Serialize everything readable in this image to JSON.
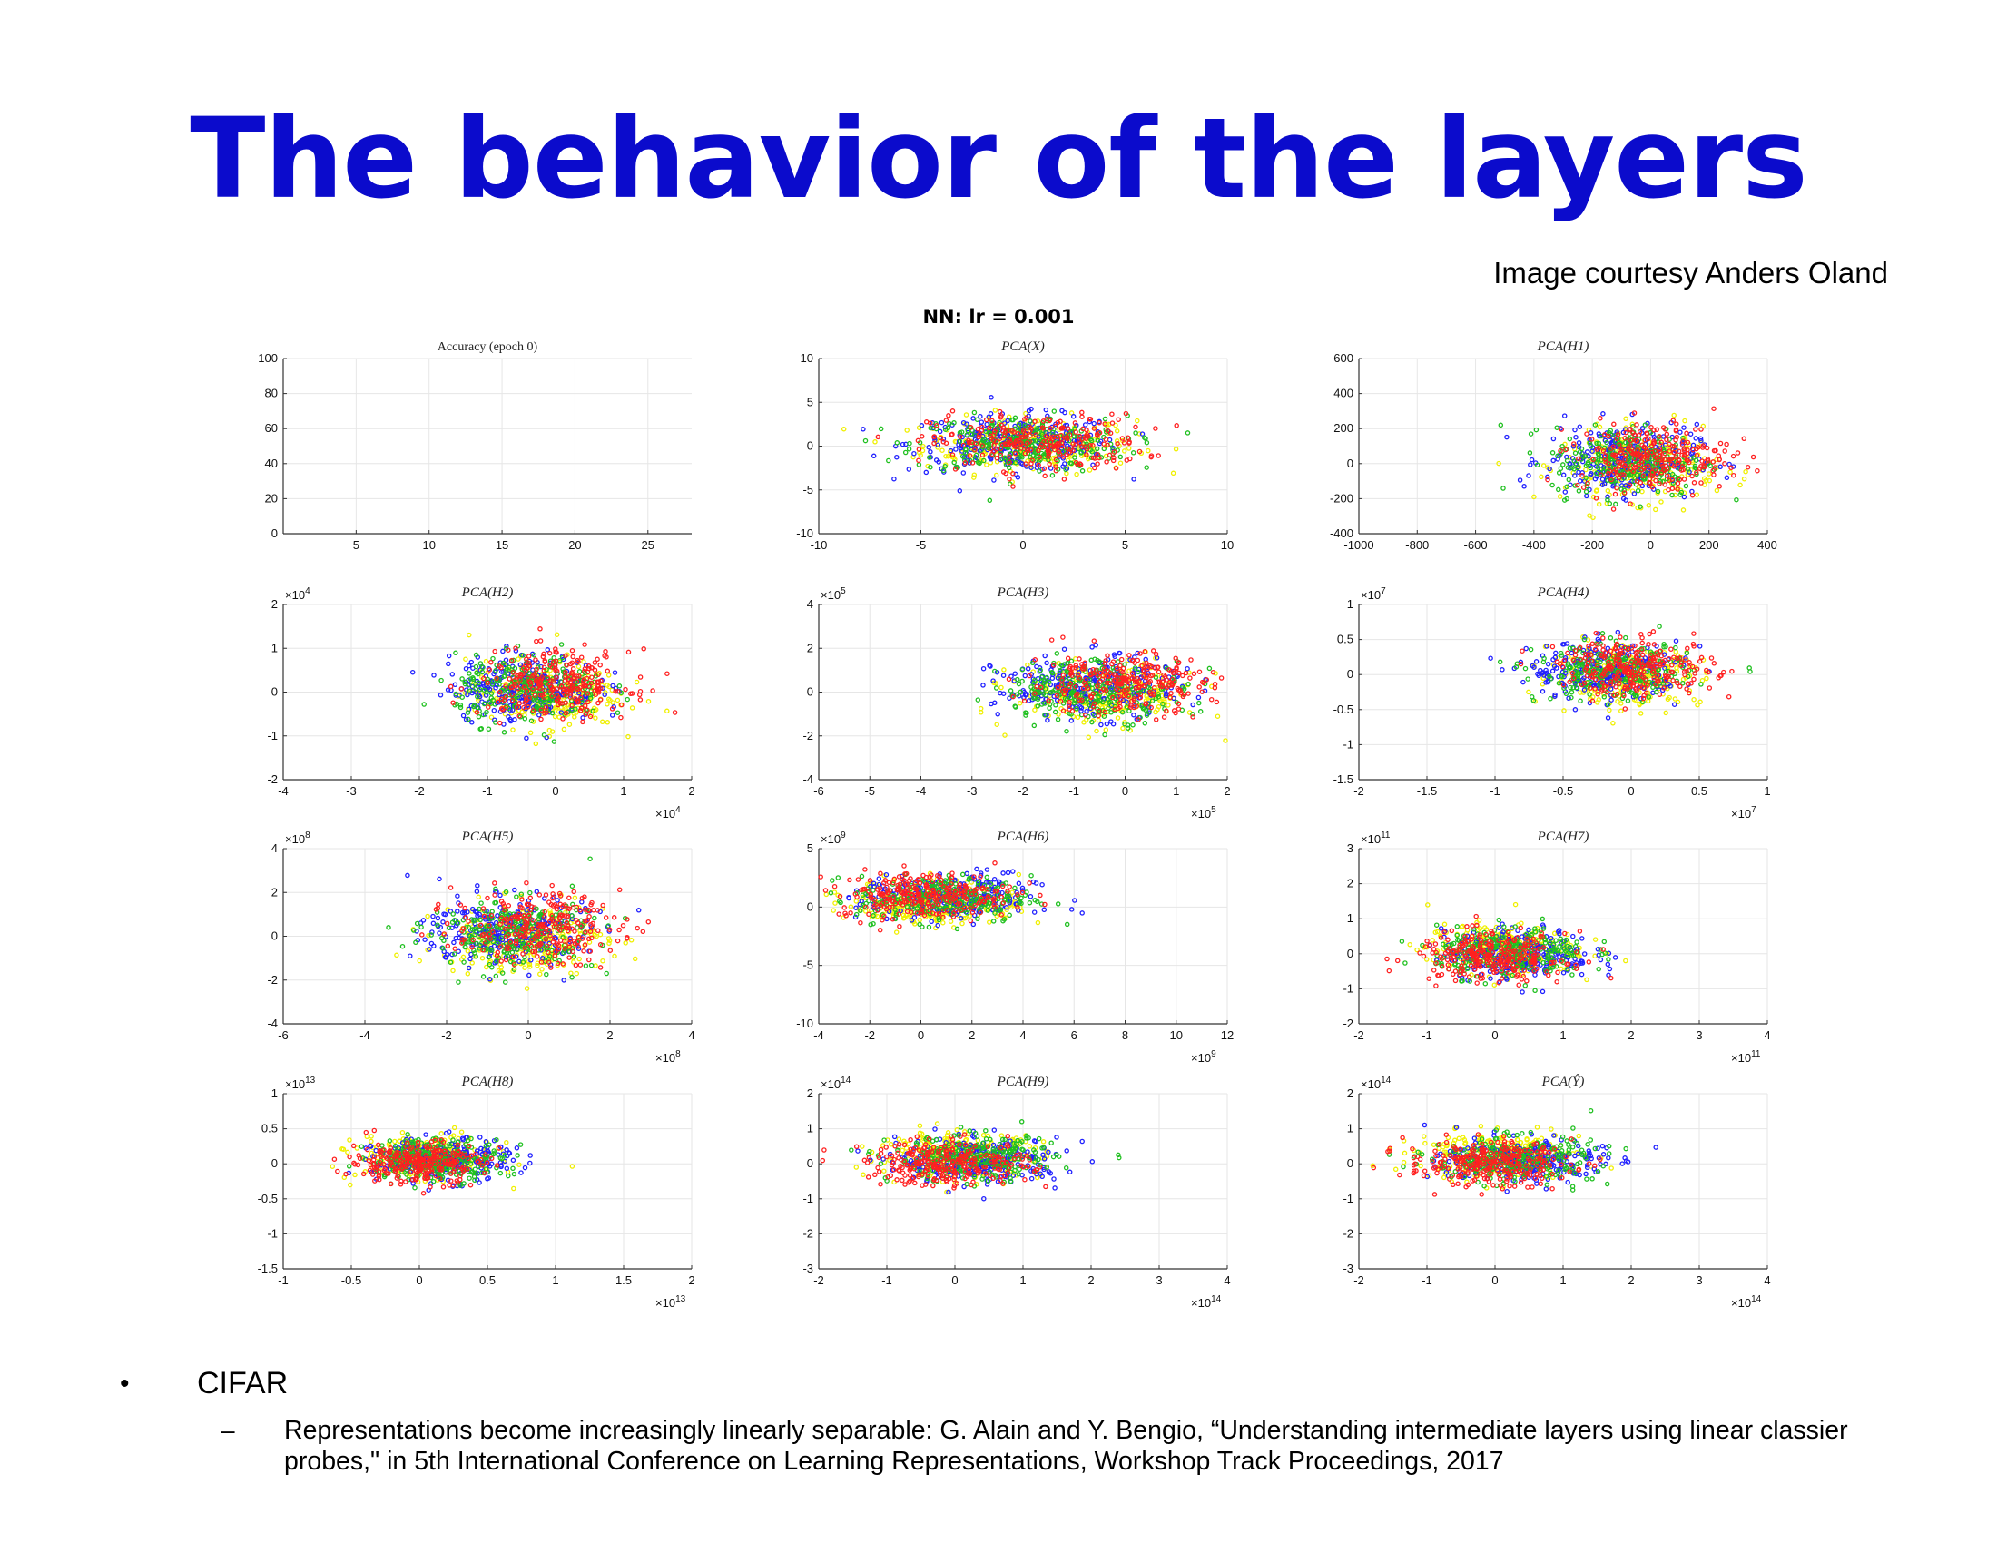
{
  "slide": {
    "title": "The behavior of the layers",
    "courtesy": "Image courtesy Anders Oland",
    "figure_title": "NN: lr = 0.001",
    "bullet": "CIFAR",
    "sub_bullet": "Representations become increasingly linearly separable: G. Alain and Y. Bengio, “Understanding intermediate layers using linear classier probes,\" in 5th International Conference on Learning Representations, Workshop Track Proceedings, 2017"
  },
  "colors": {
    "title": "#0b0bcc",
    "class_colors": [
      "#ff2020",
      "#20c020",
      "#2020ff",
      "#f0f000"
    ]
  },
  "chart_data": [
    {
      "type": "line",
      "title": "Accuracy (epoch 0)",
      "series": [],
      "xlim": [
        0,
        28
      ],
      "ylim": [
        0,
        100
      ],
      "xticks": [
        "5",
        "10",
        "15",
        "20",
        "25"
      ],
      "xtick_values": [
        5,
        10,
        15,
        20,
        25
      ],
      "yticks": [
        "0",
        "20",
        "40",
        "60",
        "80",
        "100"
      ],
      "ytick_values": [
        0,
        20,
        40,
        60,
        80,
        100
      ],
      "x_exponent": "",
      "y_exponent": "",
      "grid": true
    },
    {
      "type": "scatter",
      "title": "PCA(X)",
      "xlim": [
        -10,
        10
      ],
      "ylim": [
        -10,
        10
      ],
      "xticks": [
        "-10",
        "-5",
        "0",
        "5",
        "10"
      ],
      "xtick_values": [
        -10,
        -5,
        0,
        5,
        10
      ],
      "yticks": [
        "-10",
        "-5",
        "0",
        "5",
        "10"
      ],
      "ytick_values": [
        -10,
        -5,
        0,
        5,
        10
      ],
      "x_exponent": "",
      "y_exponent": "",
      "grid": true,
      "clusters": {
        "center": [
          0,
          0.3
        ],
        "spread": [
          2.6,
          1.6
        ],
        "class_offset": [
          0.7,
          0.2
        ]
      }
    },
    {
      "type": "scatter",
      "title": "PCA(H1)",
      "xlim": [
        -1000,
        400
      ],
      "ylim": [
        -400,
        600
      ],
      "xticks": [
        "-1000",
        "-800",
        "-600",
        "-400",
        "-200",
        "0",
        "200",
        "400"
      ],
      "xtick_values": [
        -1000,
        -800,
        -600,
        -400,
        -200,
        0,
        200,
        400
      ],
      "yticks": [
        "-400",
        "-200",
        "0",
        "200",
        "400",
        "600"
      ],
      "ytick_values": [
        -400,
        -200,
        0,
        200,
        400,
        600
      ],
      "x_exponent": "",
      "y_exponent": "",
      "grid": true,
      "clusters": {
        "center": [
          -60,
          20
        ],
        "spread": [
          130,
          100
        ],
        "class_offset": [
          70,
          35
        ]
      }
    },
    {
      "type": "scatter",
      "title": "PCA(H2)",
      "xlim": [
        -4,
        2
      ],
      "ylim": [
        -2,
        2
      ],
      "xticks": [
        "-4",
        "-3",
        "-2",
        "-1",
        "0",
        "1",
        "2"
      ],
      "xtick_values": [
        -4,
        -3,
        -2,
        -1,
        0,
        1,
        2
      ],
      "yticks": [
        "-2",
        "-1",
        "0",
        "1",
        "2"
      ],
      "ytick_values": [
        -2,
        -1,
        0,
        1,
        2
      ],
      "x_exponent": "4",
      "y_exponent": "4",
      "grid": true,
      "clusters": {
        "center": [
          -0.3,
          0.1
        ],
        "spread": [
          0.55,
          0.38
        ],
        "class_offset": [
          0.3,
          0.15
        ]
      }
    },
    {
      "type": "scatter",
      "title": "PCA(H3)",
      "xlim": [
        -6,
        2
      ],
      "ylim": [
        -4,
        4
      ],
      "xticks": [
        "-6",
        "-5",
        "-4",
        "-3",
        "-2",
        "-1",
        "0",
        "1",
        "2"
      ],
      "xtick_values": [
        -6,
        -5,
        -4,
        -3,
        -2,
        -1,
        0,
        1,
        2
      ],
      "yticks": [
        "-4",
        "-2",
        "0",
        "2",
        "4"
      ],
      "ytick_values": [
        -4,
        -2,
        0,
        2,
        4
      ],
      "x_exponent": "5",
      "y_exponent": "5",
      "grid": true,
      "clusters": {
        "center": [
          -0.5,
          0.2
        ],
        "spread": [
          0.9,
          0.7
        ],
        "class_offset": [
          0.4,
          0.3
        ]
      }
    },
    {
      "type": "scatter",
      "title": "PCA(H4)",
      "xlim": [
        -2,
        1
      ],
      "ylim": [
        -1.5,
        1
      ],
      "xticks": [
        "-2",
        "-1.5",
        "-1",
        "-0.5",
        "0",
        "0.5",
        "1"
      ],
      "xtick_values": [
        -2,
        -1.5,
        -1,
        -0.5,
        0,
        0.5,
        1
      ],
      "yticks": [
        "-1.5",
        "-1",
        "-0.5",
        "0",
        "0.5",
        "1"
      ],
      "ytick_values": [
        -1.5,
        -1,
        -0.5,
        0,
        0.5,
        1
      ],
      "x_exponent": "7",
      "y_exponent": "7",
      "grid": true,
      "clusters": {
        "center": [
          -0.1,
          0.05
        ],
        "spread": [
          0.28,
          0.2
        ],
        "class_offset": [
          0.15,
          0.08
        ]
      }
    },
    {
      "type": "scatter",
      "title": "PCA(H5)",
      "xlim": [
        -6,
        4
      ],
      "ylim": [
        -4,
        4
      ],
      "xticks": [
        "-6",
        "-4",
        "-2",
        "0",
        "2",
        "4"
      ],
      "xtick_values": [
        -6,
        -4,
        -2,
        0,
        2,
        4
      ],
      "yticks": [
        "-4",
        "-2",
        "0",
        "2",
        "4"
      ],
      "ytick_values": [
        -4,
        -2,
        0,
        2,
        4
      ],
      "x_exponent": "8",
      "y_exponent": "8",
      "grid": true,
      "clusters": {
        "center": [
          -0.3,
          0.2
        ],
        "spread": [
          1.0,
          0.8
        ],
        "class_offset": [
          0.5,
          0.3
        ]
      }
    },
    {
      "type": "scatter",
      "title": "PCA(H6)",
      "xlim": [
        -4,
        12
      ],
      "ylim": [
        -10,
        5
      ],
      "xticks": [
        "-4",
        "-2",
        "0",
        "2",
        "4",
        "6",
        "8",
        "10",
        "12"
      ],
      "xtick_values": [
        -4,
        -2,
        0,
        2,
        4,
        6,
        8,
        10,
        12
      ],
      "yticks": [
        "-10",
        "-5",
        "0",
        "5"
      ],
      "ytick_values": [
        -10,
        -5,
        0,
        5
      ],
      "x_exponent": "9",
      "y_exponent": "9",
      "grid": true,
      "clusters": {
        "center": [
          0.8,
          0.8
        ],
        "spread": [
          1.7,
          1.0
        ],
        "class_offset": [
          -0.6,
          0.4
        ]
      }
    },
    {
      "type": "scatter",
      "title": "PCA(H7)",
      "xlim": [
        -2,
        4
      ],
      "ylim": [
        -2,
        3
      ],
      "xticks": [
        "-2",
        "-1",
        "0",
        "1",
        "2",
        "3",
        "4"
      ],
      "xtick_values": [
        -2,
        -1,
        0,
        1,
        2,
        3,
        4
      ],
      "yticks": [
        "-2",
        "-1",
        "0",
        "1",
        "2",
        "3"
      ],
      "ytick_values": [
        -2,
        -1,
        0,
        1,
        2,
        3
      ],
      "x_exponent": "11",
      "y_exponent": "11",
      "grid": true,
      "clusters": {
        "center": [
          0.2,
          0.0
        ],
        "spread": [
          0.55,
          0.35
        ],
        "class_offset": [
          -0.25,
          -0.15
        ]
      }
    },
    {
      "type": "scatter",
      "title": "PCA(H8)",
      "xlim": [
        -1,
        2
      ],
      "ylim": [
        -1.5,
        1
      ],
      "xticks": [
        "-1",
        "-0.5",
        "0",
        "0.5",
        "1",
        "1.5",
        "2"
      ],
      "xtick_values": [
        -1,
        -0.5,
        0,
        0.5,
        1,
        1.5,
        2
      ],
      "yticks": [
        "-1.5",
        "-1",
        "-0.5",
        "0",
        "0.5",
        "1"
      ],
      "ytick_values": [
        -1.5,
        -1,
        -0.5,
        0,
        0.5,
        1
      ],
      "x_exponent": "13",
      "y_exponent": "13",
      "grid": true,
      "clusters": {
        "center": [
          0.1,
          0.05
        ],
        "spread": [
          0.25,
          0.15
        ],
        "class_offset": [
          -0.12,
          -0.05
        ]
      }
    },
    {
      "type": "scatter",
      "title": "PCA(H9)",
      "xlim": [
        -2,
        4
      ],
      "ylim": [
        -3,
        2
      ],
      "xticks": [
        "-2",
        "-1",
        "0",
        "1",
        "2",
        "3",
        "4"
      ],
      "xtick_values": [
        -2,
        -1,
        0,
        1,
        2,
        3,
        4
      ],
      "yticks": [
        "-3",
        "-2",
        "-1",
        "0",
        "1",
        "2"
      ],
      "ytick_values": [
        -3,
        -2,
        -1,
        0,
        1,
        2
      ],
      "x_exponent": "14",
      "y_exponent": "14",
      "grid": true,
      "clusters": {
        "center": [
          0.2,
          0.1
        ],
        "spread": [
          0.6,
          0.32
        ],
        "class_offset": [
          -0.3,
          -0.15
        ]
      }
    },
    {
      "type": "scatter",
      "title": "PCA(Ŷ)",
      "xlim": [
        -2,
        4
      ],
      "ylim": [
        -3,
        2
      ],
      "xticks": [
        "-2",
        "-1",
        "0",
        "1",
        "2",
        "3",
        "4"
      ],
      "xtick_values": [
        -2,
        -1,
        0,
        1,
        2,
        3,
        4
      ],
      "yticks": [
        "-3",
        "-2",
        "-1",
        "0",
        "1",
        "2"
      ],
      "ytick_values": [
        -3,
        -2,
        -1,
        0,
        1,
        2
      ],
      "x_exponent": "14",
      "y_exponent": "14",
      "grid": true,
      "clusters": {
        "center": [
          0.2,
          0.1
        ],
        "spread": [
          0.6,
          0.32
        ],
        "class_offset": [
          -0.3,
          -0.15
        ]
      }
    }
  ]
}
